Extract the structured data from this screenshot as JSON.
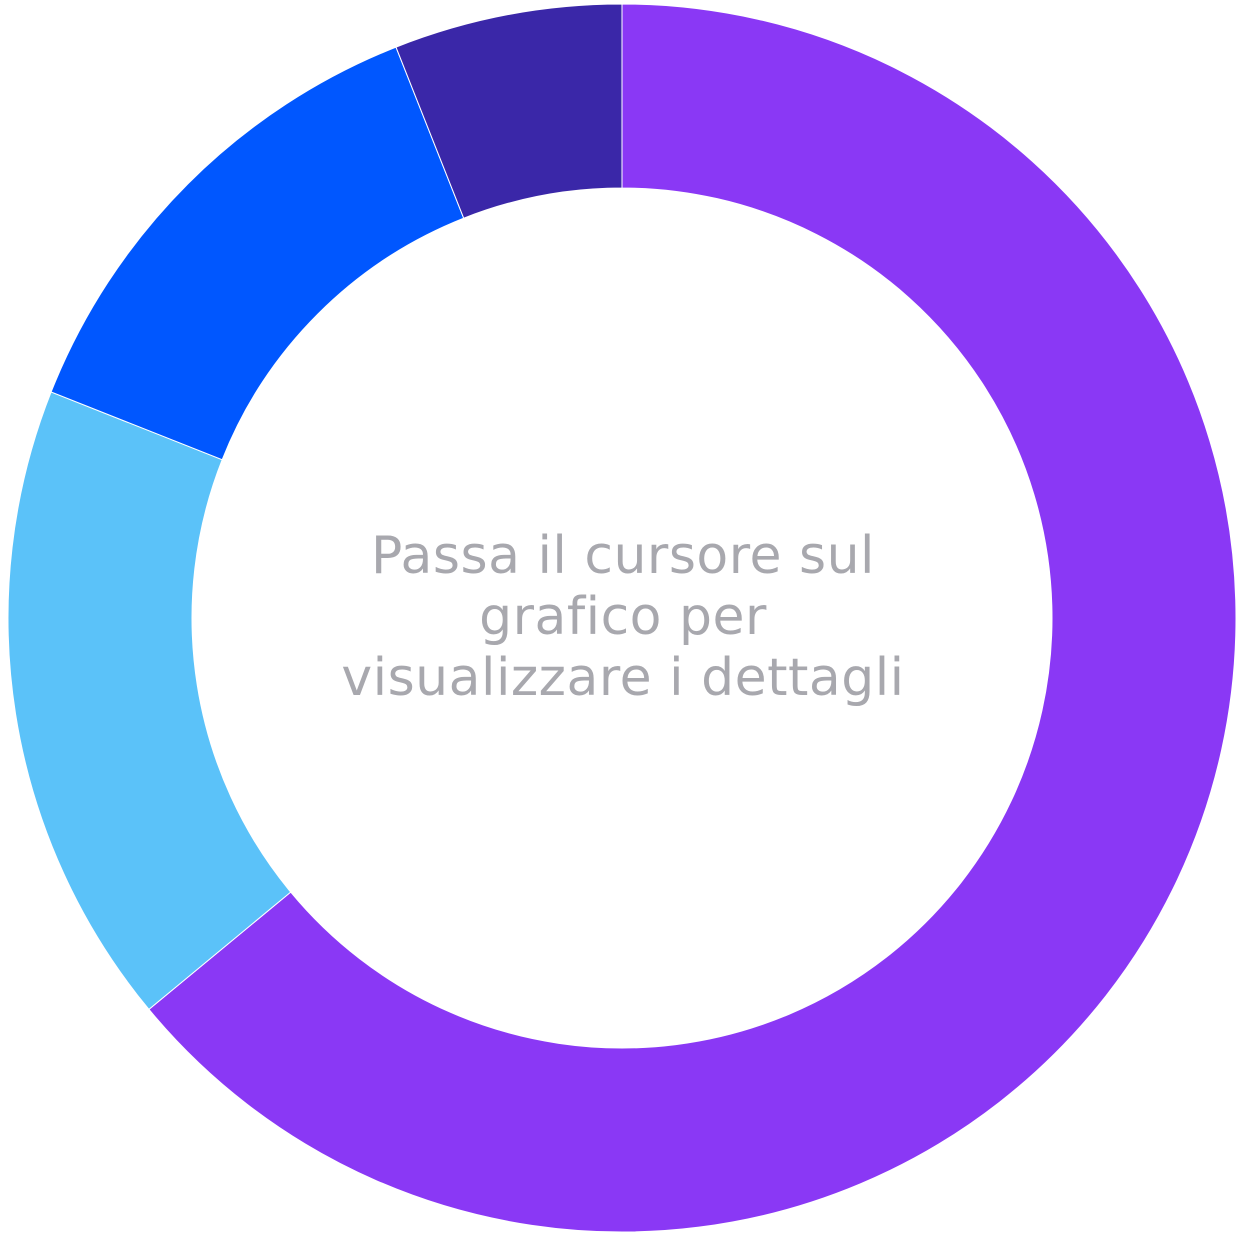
{
  "chart_data": {
    "type": "pie",
    "variant": "donut",
    "slices": [
      {
        "value": 64,
        "color": "#8a38f5"
      },
      {
        "value": 17,
        "color": "#5bc2f9"
      },
      {
        "value": 13,
        "color": "#0057ff"
      },
      {
        "value": 6,
        "color": "#3a27a8"
      }
    ],
    "start_angle_deg": 0,
    "direction": "clockwise"
  },
  "center_message": {
    "line1": "Passa il cursore sul",
    "line2": "grafico per",
    "line3": "visualizzare i dettagli"
  }
}
